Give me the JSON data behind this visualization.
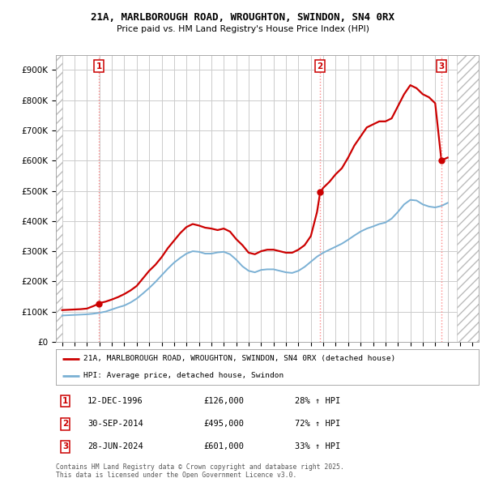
{
  "title": "21A, MARLBOROUGH ROAD, WROUGHTON, SWINDON, SN4 0RX",
  "subtitle": "Price paid vs. HM Land Registry's House Price Index (HPI)",
  "ylim": [
    0,
    950000
  ],
  "yticks": [
    0,
    100000,
    200000,
    300000,
    400000,
    500000,
    600000,
    700000,
    800000,
    900000
  ],
  "xlim_start": 1993.5,
  "xlim_end": 2027.5,
  "hatch_left_end": 1994.0,
  "hatch_right_start": 2025.75,
  "sale_events": [
    {
      "num": 1,
      "year": 1996.95,
      "price": 126000,
      "date": "12-DEC-1996",
      "pct": "28%",
      "dir": "↑"
    },
    {
      "num": 2,
      "year": 2014.75,
      "price": 495000,
      "date": "30-SEP-2014",
      "pct": "72%",
      "dir": "↑"
    },
    {
      "num": 3,
      "year": 2024.5,
      "price": 601000,
      "date": "28-JUN-2024",
      "pct": "33%",
      "dir": "↑"
    }
  ],
  "red_line_color": "#cc0000",
  "blue_line_color": "#7ab0d4",
  "grid_color": "#cccccc",
  "sale_dot_color": "#cc0000",
  "sale_vline_color": "#ff8888",
  "background_color": "#ffffff",
  "legend_entry1": "21A, MARLBOROUGH ROAD, WROUGHTON, SWINDON, SN4 0RX (detached house)",
  "legend_entry2": "HPI: Average price, detached house, Swindon",
  "footer1": "Contains HM Land Registry data © Crown copyright and database right 2025.",
  "footer2": "This data is licensed under the Open Government Licence v3.0.",
  "red_line_x": [
    1994,
    1994.5,
    1995,
    1995.5,
    1996,
    1996.5,
    1996.95,
    1997,
    1997.5,
    1998,
    1998.5,
    1999,
    1999.5,
    2000,
    2000.5,
    2001,
    2001.5,
    2002,
    2002.5,
    2003,
    2003.5,
    2004,
    2004.5,
    2005,
    2005.5,
    2006,
    2006.5,
    2007,
    2007.5,
    2008,
    2008.5,
    2009,
    2009.5,
    2010,
    2010.5,
    2011,
    2011.5,
    2012,
    2012.5,
    2013,
    2013.5,
    2014,
    2014.5,
    2014.75,
    2015,
    2015.5,
    2016,
    2016.5,
    2017,
    2017.5,
    2018,
    2018.5,
    2019,
    2019.5,
    2020,
    2020.5,
    2021,
    2021.5,
    2022,
    2022.5,
    2023,
    2023.5,
    2024,
    2024.5,
    2025
  ],
  "red_line_y": [
    105000,
    106000,
    107000,
    108000,
    110000,
    118000,
    126000,
    128000,
    133000,
    140000,
    148000,
    158000,
    170000,
    185000,
    210000,
    235000,
    255000,
    280000,
    310000,
    335000,
    360000,
    380000,
    390000,
    385000,
    378000,
    375000,
    370000,
    375000,
    365000,
    340000,
    320000,
    295000,
    290000,
    300000,
    305000,
    305000,
    300000,
    295000,
    295000,
    305000,
    320000,
    350000,
    430000,
    495000,
    510000,
    530000,
    555000,
    575000,
    610000,
    650000,
    680000,
    710000,
    720000,
    730000,
    730000,
    740000,
    780000,
    820000,
    850000,
    840000,
    820000,
    810000,
    790000,
    601000,
    610000
  ],
  "blue_line_x": [
    1994,
    1994.5,
    1995,
    1995.5,
    1996,
    1996.5,
    1997,
    1997.5,
    1998,
    1998.5,
    1999,
    1999.5,
    2000,
    2000.5,
    2001,
    2001.5,
    2002,
    2002.5,
    2003,
    2003.5,
    2004,
    2004.5,
    2005,
    2005.5,
    2006,
    2006.5,
    2007,
    2007.5,
    2008,
    2008.5,
    2009,
    2009.5,
    2010,
    2010.5,
    2011,
    2011.5,
    2012,
    2012.5,
    2013,
    2013.5,
    2014,
    2014.5,
    2015,
    2015.5,
    2016,
    2016.5,
    2017,
    2017.5,
    2018,
    2018.5,
    2019,
    2019.5,
    2020,
    2020.5,
    2021,
    2021.5,
    2022,
    2022.5,
    2023,
    2023.5,
    2024,
    2024.5,
    2025
  ],
  "blue_line_y": [
    87000,
    88000,
    89000,
    90000,
    91000,
    93000,
    96000,
    100000,
    107000,
    114000,
    120000,
    130000,
    143000,
    160000,
    178000,
    198000,
    220000,
    242000,
    262000,
    278000,
    292000,
    300000,
    298000,
    292000,
    292000,
    296000,
    298000,
    290000,
    272000,
    250000,
    235000,
    230000,
    238000,
    240000,
    240000,
    235000,
    230000,
    228000,
    235000,
    248000,
    265000,
    282000,
    295000,
    305000,
    315000,
    325000,
    338000,
    352000,
    365000,
    375000,
    382000,
    390000,
    395000,
    408000,
    430000,
    455000,
    470000,
    468000,
    455000,
    448000,
    445000,
    450000,
    460000
  ]
}
